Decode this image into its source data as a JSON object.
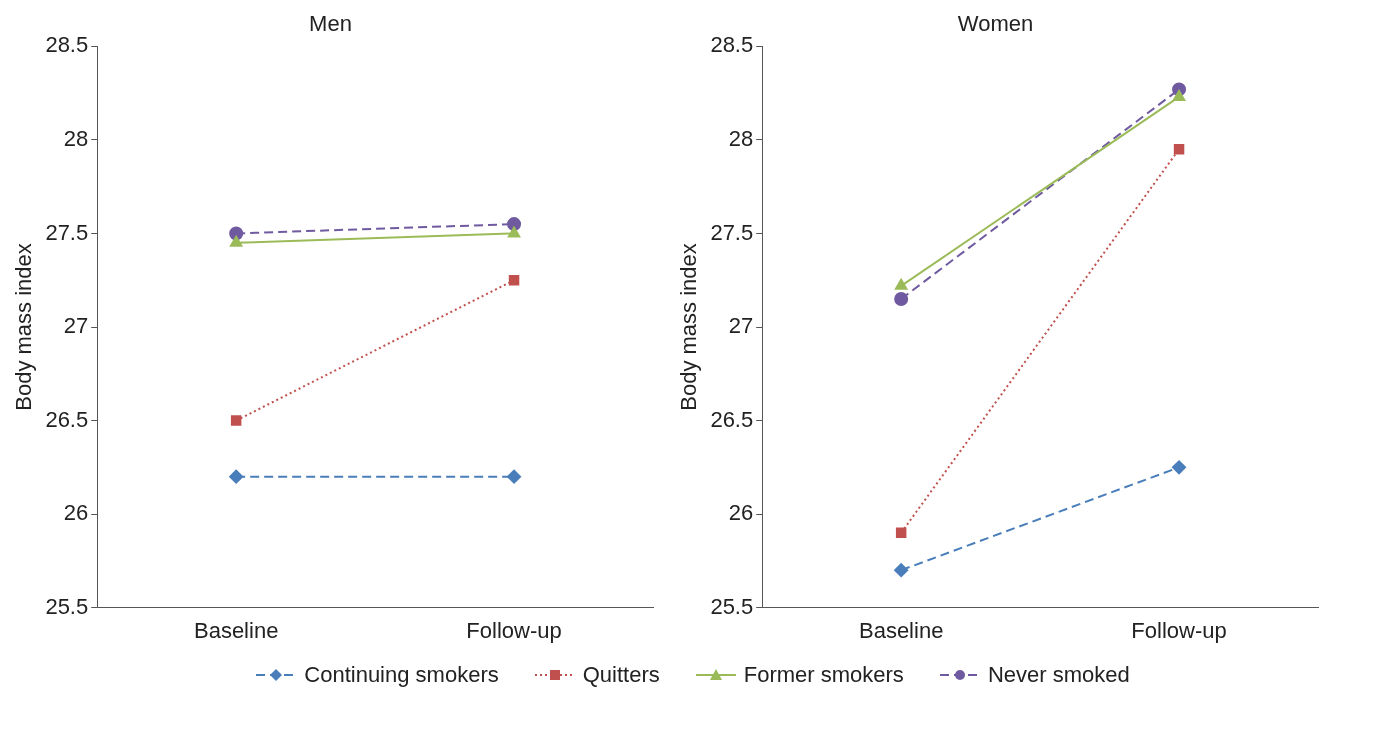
{
  "chart_data": [
    {
      "type": "line",
      "title": "Men",
      "ylabel": "Body mass index",
      "categories": [
        "Baseline",
        "Follow-up"
      ],
      "ylim": [
        25.5,
        28.5
      ],
      "yticks": [
        25.5,
        26,
        26.5,
        27,
        27.5,
        28,
        28.5
      ],
      "legend": "bottom",
      "series": [
        {
          "name": "Continuing smokers",
          "color": "#4a7ebb",
          "marker": "diamond",
          "line_style": "dashed",
          "values": [
            26.2,
            26.2
          ]
        },
        {
          "name": "Quitters",
          "color": "#c0504d",
          "marker": "square",
          "line_style": "dotted",
          "values": [
            26.5,
            27.25
          ]
        },
        {
          "name": "Former smokers",
          "color": "#9bbb59",
          "marker": "triangle",
          "line_style": "solid",
          "values": [
            27.45,
            27.5
          ]
        },
        {
          "name": "Never smoked",
          "color": "#6f5aa0",
          "marker": "circle",
          "line_style": "dashed",
          "values": [
            27.5,
            27.55
          ]
        }
      ]
    },
    {
      "type": "line",
      "title": "Women",
      "ylabel": "Body mass index",
      "categories": [
        "Baseline",
        "Follow-up"
      ],
      "ylim": [
        25.5,
        28.5
      ],
      "yticks": [
        25.5,
        26,
        26.5,
        27,
        27.5,
        28,
        28.5
      ],
      "series": [
        {
          "color": "#4a7ebb",
          "marker": "diamond",
          "line_style": "dashed",
          "values": [
            25.7,
            26.25
          ]
        },
        {
          "color": "#c0504d",
          "marker": "square",
          "line_style": "dotted",
          "values": [
            25.9,
            27.95
          ]
        },
        {
          "color": "#9bbb59",
          "marker": "triangle",
          "line_style": "solid",
          "values": [
            27.22,
            28.23
          ]
        },
        {
          "color": "#6f5aa0",
          "marker": "circle",
          "line_style": "dashed",
          "values": [
            27.15,
            28.27
          ]
        }
      ]
    }
  ]
}
